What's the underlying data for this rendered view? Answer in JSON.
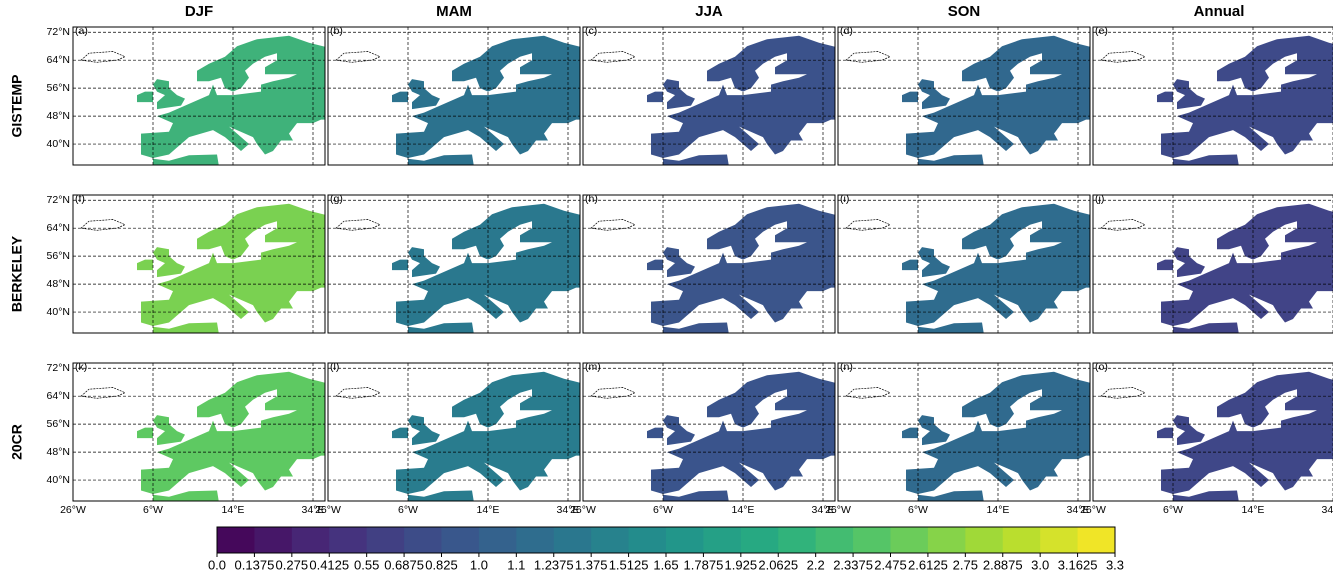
{
  "columns": [
    "DJF",
    "MAM",
    "JJA",
    "SON",
    "Annual"
  ],
  "rows": [
    "GISTEMP",
    "BERKELEY",
    "20CR"
  ],
  "panels": [
    [
      {
        "label": "(a)",
        "color": "#3fb27a"
      },
      {
        "label": "(b)",
        "color": "#2c728e"
      },
      {
        "label": "(c)",
        "color": "#3b528b"
      },
      {
        "label": "(d)",
        "color": "#31688e"
      },
      {
        "label": "(e)",
        "color": "#3e4a89"
      }
    ],
    [
      {
        "label": "(f)",
        "color": "#7ad151"
      },
      {
        "label": "(g)",
        "color": "#2a788e"
      },
      {
        "label": "(h)",
        "color": "#3b558b"
      },
      {
        "label": "(i)",
        "color": "#2f6c8e"
      },
      {
        "label": "(j)",
        "color": "#414487"
      }
    ],
    [
      {
        "label": "(k)",
        "color": "#5ec962"
      },
      {
        "label": "(l)",
        "color": "#297c8e"
      },
      {
        "label": "(m)",
        "color": "#3a548c"
      },
      {
        "label": "(n)",
        "color": "#306a8e"
      },
      {
        "label": "(o)",
        "color": "#3f4788"
      }
    ]
  ],
  "map": {
    "xlim": [
      -26,
      37
    ],
    "ylim": [
      34,
      73.5
    ],
    "xticks": [
      {
        "value": -26,
        "label": "26°W"
      },
      {
        "value": -6,
        "label": "6°W"
      },
      {
        "value": 14,
        "label": "14°E"
      },
      {
        "value": 34,
        "label": "34°E"
      }
    ],
    "yticks": [
      {
        "value": 72,
        "label": "72°N"
      },
      {
        "value": 64,
        "label": "64°N"
      },
      {
        "value": 56,
        "label": "56°N"
      },
      {
        "value": 48,
        "label": "48°N"
      },
      {
        "value": 40,
        "label": "40°N"
      }
    ],
    "grid": true
  },
  "colorbar": {
    "clim": [
      0,
      3.3
    ],
    "ticks": [
      {
        "value": 0,
        "label": "0.0"
      },
      0.1375,
      0.275,
      0.4125,
      0.55,
      0.6875,
      0.825,
      {
        "value": 0.9625,
        "label": "1.0"
      },
      1.1,
      1.2375,
      1.375,
      1.5125,
      1.65,
      1.7875,
      1.925,
      2.0625,
      2.2,
      2.3375,
      2.475,
      2.6125,
      2.75,
      2.8875,
      {
        "value": 3.025,
        "label": "3.0"
      },
      3.1625,
      3.3
    ]
  }
}
